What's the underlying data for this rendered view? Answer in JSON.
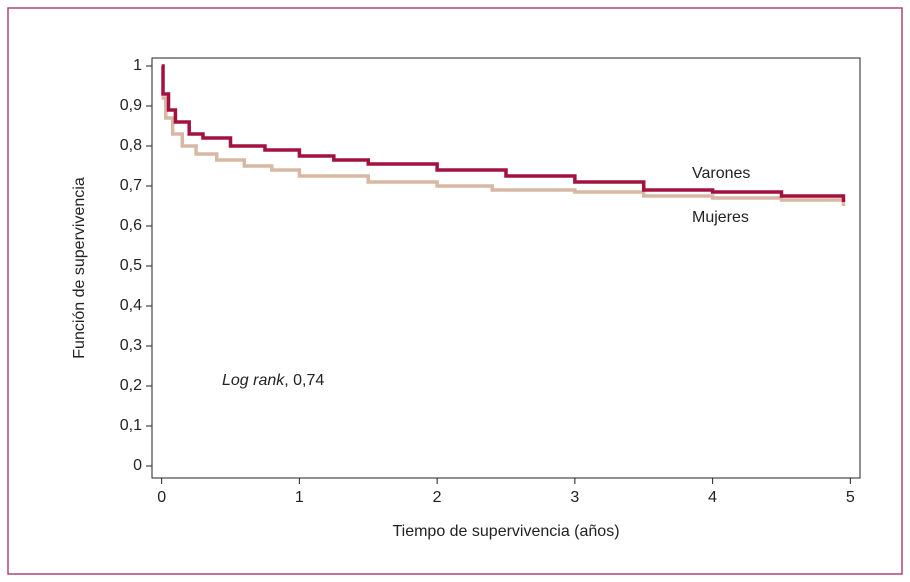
{
  "chart_data": {
    "type": "step",
    "xlabel": "Tiempo de supervivencia (años)",
    "ylabel": "Función de supervivencia",
    "annotation": {
      "italic": "Log rank",
      "text": ", 0,74"
    },
    "xlim": [
      -0.07,
      5.07
    ],
    "ylim": [
      -0.03,
      1.02
    ],
    "xticks": [
      0,
      1,
      2,
      3,
      4,
      5
    ],
    "yticks": [
      0,
      {
        "value": 0.1,
        "label": "0,1"
      },
      {
        "value": 0.2,
        "label": "0,2"
      },
      {
        "value": 0.3,
        "label": "0,3"
      },
      {
        "value": 0.4,
        "label": "0,4"
      },
      {
        "value": 0.5,
        "label": "0,5"
      },
      {
        "value": 0.6,
        "label": "0,6"
      },
      {
        "value": 0.7,
        "label": "0,7"
      },
      {
        "value": 0.8,
        "label": "0,8"
      },
      {
        "value": 0.9,
        "label": "0,9"
      },
      1
    ],
    "series": [
      {
        "name": "Varones",
        "color": "#a3123f",
        "x": [
          0,
          0.01,
          0.05,
          0.1,
          0.2,
          0.3,
          0.5,
          0.75,
          1,
          1.25,
          1.5,
          2,
          2.5,
          3,
          3.5,
          4,
          4.5,
          4.95
        ],
        "values": [
          1,
          0.93,
          0.89,
          0.86,
          0.83,
          0.82,
          0.8,
          0.79,
          0.775,
          0.765,
          0.755,
          0.74,
          0.725,
          0.71,
          0.69,
          0.685,
          0.675,
          0.66
        ]
      },
      {
        "name": "Mujeres",
        "color": "#d8b8a4",
        "x": [
          0,
          0.03,
          0.08,
          0.15,
          0.25,
          0.4,
          0.6,
          0.8,
          1,
          1.5,
          2,
          2.4,
          3,
          3.5,
          4,
          4.5,
          4.95
        ],
        "values": [
          0.92,
          0.87,
          0.83,
          0.8,
          0.78,
          0.765,
          0.75,
          0.74,
          0.725,
          0.71,
          0.7,
          0.69,
          0.685,
          0.675,
          0.67,
          0.665,
          0.65
        ]
      }
    ]
  }
}
